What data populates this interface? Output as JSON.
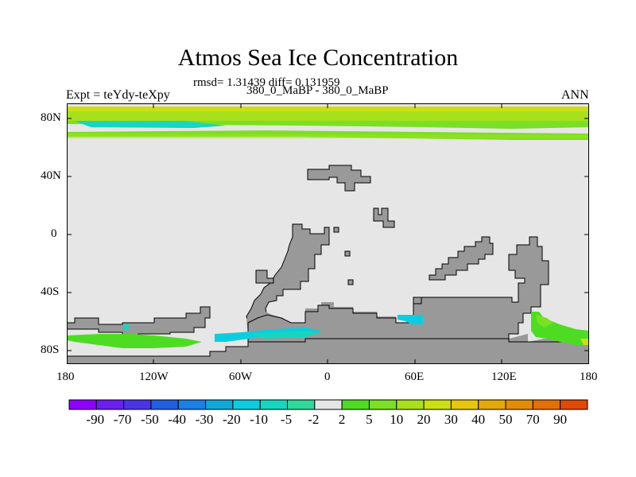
{
  "title": "Atmos Sea Ice Concentration",
  "stats": "rmsd= 1.31439 diff= 0.131959",
  "case_label": "380_0_MaBP - 380_0_MaBP",
  "expt_label": "Expt = teYdy-teXpy",
  "season": "ANN",
  "y_ticks": [
    "80N",
    "40N",
    "0",
    "40S",
    "80S"
  ],
  "x_ticks": [
    "180",
    "120W",
    "60W",
    "0",
    "60E",
    "120E",
    "180"
  ],
  "colorbar": {
    "labels": [
      "-90",
      "-70",
      "-50",
      "-40",
      "-30",
      "-20",
      "-10",
      "-5",
      "-2",
      "2",
      "5",
      "10",
      "20",
      "30",
      "40",
      "50",
      "70",
      "90"
    ],
    "colors": [
      "#8f00ff",
      "#6a1ef0",
      "#4a34e8",
      "#1f5fe0",
      "#1a80e6",
      "#0fa8d8",
      "#0ccde0",
      "#15d6c0",
      "#30d89a",
      "#e6e6e6",
      "#4ddc22",
      "#7ae023",
      "#a8e01c",
      "#cce010",
      "#e8c60c",
      "#e4a808",
      "#e48c06",
      "#e27004",
      "#e04a04"
    ]
  },
  "colors": {
    "land": "#999999",
    "no_change": "#e6e6e6",
    "positive_low": "#7ae023",
    "positive_mid": "#a8e01c",
    "negative_low": "#15d6c0"
  }
}
